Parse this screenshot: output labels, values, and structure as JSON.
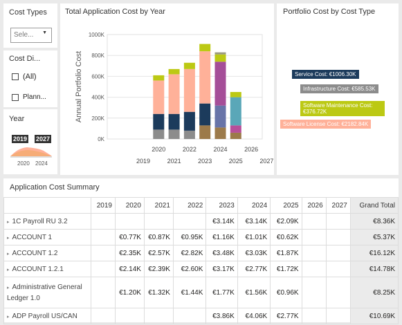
{
  "slicers": {
    "cost_types": {
      "title": "Cost Types",
      "dropdown_value": "Sele...",
      "caret": "▼"
    },
    "cost_distribution": {
      "title": "Cost Di...",
      "options": [
        {
          "label": "(All)",
          "checked": false
        },
        {
          "label": "Plann...",
          "checked": false
        }
      ]
    },
    "year": {
      "title": "Year",
      "start": "2019",
      "end": "2027",
      "axis_start": "2020",
      "axis_end": "2024"
    }
  },
  "chart": {
    "title": "Total Application Cost by Year",
    "chart_data": {
      "type": "bar",
      "stacked": true,
      "title": "Total Application Cost by Year",
      "ylabel": "Annual Portfolio Cost",
      "ylim": [
        0,
        1000000
      ],
      "yticks": [
        "0K",
        "200K",
        "400K",
        "600K",
        "800K",
        "1000K"
      ],
      "x_labels_top": [
        "2020",
        "2022",
        "2024",
        "2026"
      ],
      "x_labels_bottom": [
        "2019",
        "2021",
        "2023",
        "2025",
        "2027"
      ],
      "categories": [
        "2020",
        "2021",
        "2022",
        "2023",
        "2024",
        "2025"
      ],
      "series": [
        {
          "color": "#8c8c8c",
          "values": [
            90000,
            90000,
            80000,
            0,
            0,
            0
          ]
        },
        {
          "color": "#9c7a4a",
          "values": [
            0,
            0,
            0,
            130000,
            110000,
            60000
          ]
        },
        {
          "color": "#1c3b5c",
          "values": [
            150000,
            150000,
            180000,
            210000,
            0,
            0
          ]
        },
        {
          "color": "#6874a8",
          "values": [
            0,
            0,
            0,
            0,
            210000,
            0
          ]
        },
        {
          "color": "#b64f9a",
          "values": [
            0,
            0,
            0,
            0,
            0,
            70000
          ]
        },
        {
          "color": "#a54e98",
          "values": [
            0,
            0,
            0,
            0,
            420000,
            0
          ]
        },
        {
          "color": "#5aa7b8",
          "values": [
            0,
            0,
            0,
            0,
            0,
            270000
          ]
        },
        {
          "color": "#ffb199",
          "values": [
            320000,
            380000,
            410000,
            500000,
            0,
            0
          ]
        },
        {
          "color": "#bcc914",
          "values": [
            50000,
            50000,
            60000,
            70000,
            70000,
            50000
          ]
        },
        {
          "color": "#9a9a80",
          "values": [
            0,
            0,
            0,
            0,
            20000,
            0
          ]
        }
      ]
    }
  },
  "portfolio": {
    "title": "Portfolio Cost by Cost Type",
    "labels": [
      {
        "text": "Service Cost: €1006.30K",
        "color": "#1c3b5c"
      },
      {
        "text": "Infrastructure Cost: €585.53K",
        "color": "#8c8c8c"
      },
      {
        "text": "Software Maintenance Cost: €376.72K",
        "color": "#bcc914"
      },
      {
        "text": "Software License Cost: €2182.84K",
        "color": "#ffb199"
      }
    ]
  },
  "table": {
    "title": "Application Cost Summary",
    "headers": [
      "",
      "2019",
      "2020",
      "2021",
      "2022",
      "2023",
      "2024",
      "2025",
      "2026",
      "2027",
      "Grand Total"
    ],
    "rows": [
      {
        "name": "1C Payroll RU 3.2",
        "cells": [
          "",
          "",
          "",
          "",
          "€3.14K",
          "€3.14K",
          "€2.09K",
          "",
          "",
          "€8.36K"
        ]
      },
      {
        "name": "ACCOUNT 1",
        "cells": [
          "",
          "€0.77K",
          "€0.87K",
          "€0.95K",
          "€1.16K",
          "€1.01K",
          "€0.62K",
          "",
          "",
          "€5.37K"
        ]
      },
      {
        "name": "ACCOUNT 1.2",
        "cells": [
          "",
          "€2.35K",
          "€2.57K",
          "€2.82K",
          "€3.48K",
          "€3.03K",
          "€1.87K",
          "",
          "",
          "€16.12K"
        ]
      },
      {
        "name": "ACCOUNT 1.2.1",
        "cells": [
          "",
          "€2.14K",
          "€2.39K",
          "€2.60K",
          "€3.17K",
          "€2.77K",
          "€1.72K",
          "",
          "",
          "€14.78K"
        ]
      },
      {
        "name": "Administrative General Ledger 1.0",
        "cells": [
          "",
          "€1.20K",
          "€1.32K",
          "€1.44K",
          "€1.77K",
          "€1.56K",
          "€0.96K",
          "",
          "",
          "€8.25K"
        ]
      },
      {
        "name": "ADP Payroll US/CAN",
        "cells": [
          "",
          "",
          "",
          "",
          "€3.86K",
          "€4.06K",
          "€2.77K",
          "",
          "",
          "€10.69K"
        ]
      }
    ]
  }
}
